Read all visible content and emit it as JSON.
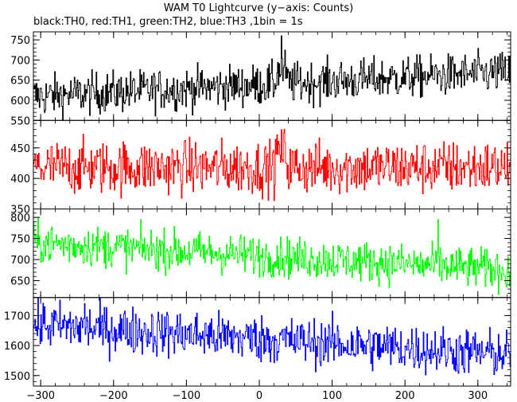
{
  "chart_data": {
    "type": "line",
    "title": "WAM T0 Lightcurve (y−axis: Counts)",
    "subtitle": "black:TH0, red:TH1, green:TH2, blue:TH3 ,1bin = 1s",
    "xlim": [
      -310,
      345
    ],
    "x_ticks": [
      -300,
      -200,
      -100,
      0,
      100,
      200,
      300
    ],
    "x_tick_labels": [
      "−300",
      "−200",
      "−100",
      "0",
      "100",
      "200",
      "300"
    ],
    "bin_seconds": 1,
    "panels": [
      {
        "name": "TH0",
        "color": "#000000",
        "ylim": [
          550,
          770
        ],
        "y_ticks": [
          550,
          600,
          650,
          700,
          750
        ],
        "trend_start": 610,
        "trend_end": 670,
        "noise": 26,
        "peak_value": 760,
        "peak_x": 30
      },
      {
        "name": "TH1",
        "color": "#ff0000",
        "ylim": [
          350,
          495
        ],
        "y_ticks": [
          350,
          400,
          450
        ],
        "trend_start": 418,
        "trend_end": 418,
        "noise": 22,
        "peak_value": 480,
        "peak_x": 30
      },
      {
        "name": "TH2",
        "color": "#00ff00",
        "ylim": [
          610,
          820
        ],
        "y_ticks": [
          650,
          700,
          750,
          800
        ],
        "trend_start": 740,
        "trend_end": 675,
        "noise": 24,
        "peak_value": 795,
        "peak_x": 245
      },
      {
        "name": "TH3",
        "color": "#0000ff",
        "ylim": [
          1465,
          1760
        ],
        "y_ticks": [
          1500,
          1600,
          1700
        ],
        "trend_start": 1670,
        "trend_end": 1570,
        "noise": 40,
        "peak_value": 1740,
        "peak_x": -240
      }
    ]
  }
}
